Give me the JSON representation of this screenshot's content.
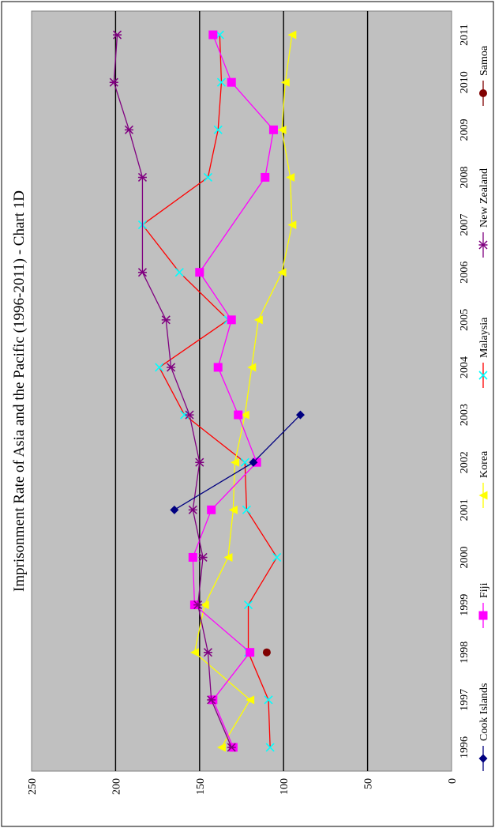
{
  "chart_data": {
    "type": "line",
    "title": "Imprisonment Rate of Asia and the Pacific (1996-2011) - Chart 1D",
    "xlabel": "",
    "ylabel": "",
    "x": [
      "1996",
      "1997",
      "1998",
      "1999",
      "2000",
      "2001",
      "2002",
      "2003",
      "2004",
      "2005",
      "2006",
      "2007",
      "2008",
      "2009",
      "2010",
      "2011"
    ],
    "ylim": [
      0,
      250
    ],
    "y_ticks": [
      "0",
      "50",
      "100",
      "150",
      "200",
      "250"
    ],
    "grid": true,
    "legend_position": "bottom",
    "orientation": "rotated 90 degrees counter-clockwise",
    "colors": {
      "plot_background": "#c0c0c0",
      "Cook Islands": "#000080",
      "Fiji": "#ff00ff",
      "Korea": "#ffff00",
      "Malaysia": "#ff0000",
      "Malaysia_marker": "#00ffff",
      "New Zealand": "#800080",
      "Samoa": "#800000"
    },
    "series": [
      {
        "name": "Cook Islands",
        "marker": "diamond",
        "values": [
          null,
          null,
          null,
          null,
          null,
          165,
          118,
          90,
          null,
          null,
          null,
          null,
          null,
          null,
          null,
          null
        ]
      },
      {
        "name": "Fiji",
        "marker": "square",
        "values": [
          130,
          142,
          120,
          153,
          154,
          143,
          116,
          127,
          139,
          131,
          150,
          null,
          111,
          106,
          131,
          142
        ]
      },
      {
        "name": "Korea",
        "marker": "triangle",
        "values": [
          137,
          120,
          153,
          147,
          133,
          130,
          129,
          123,
          119,
          115,
          101,
          95,
          96,
          101,
          99,
          95
        ]
      },
      {
        "name": "Malaysia",
        "marker": "x",
        "values": [
          108,
          109,
          121,
          121,
          104,
          122,
          123,
          159,
          174,
          133,
          162,
          184,
          145,
          139,
          137,
          138
        ]
      },
      {
        "name": "New Zealand",
        "marker": "asterisk",
        "values": [
          131,
          143,
          145,
          151,
          148,
          154,
          150,
          156,
          167,
          170,
          184,
          null,
          184,
          192,
          201,
          199
        ]
      },
      {
        "name": "Samoa",
        "marker": "circle",
        "values": [
          null,
          null,
          110,
          null,
          null,
          null,
          null,
          null,
          null,
          null,
          null,
          null,
          null,
          null,
          null,
          null
        ]
      }
    ]
  }
}
